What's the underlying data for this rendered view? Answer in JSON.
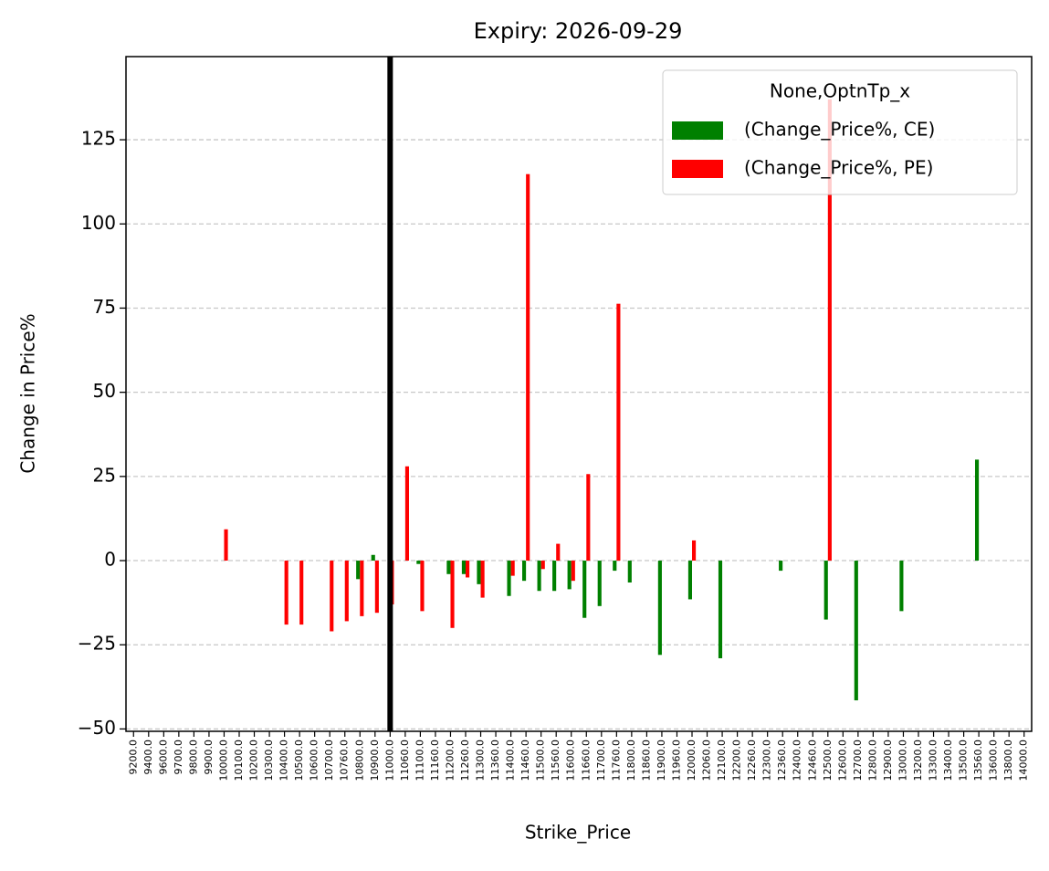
{
  "chart_data": {
    "type": "bar",
    "title": "Expiry: 2026-09-29",
    "x_label": "Strike_Price",
    "y_label": "Change in Price%",
    "categories": [
      "9200.0",
      "9400.0",
      "9600.0",
      "9700.0",
      "9800.0",
      "9900.0",
      "10000.0",
      "10100.0",
      "10200.0",
      "10300.0",
      "10400.0",
      "10500.0",
      "10600.0",
      "10700.0",
      "10760.0",
      "10800.0",
      "10900.0",
      "11000.0",
      "11060.0",
      "11100.0",
      "11160.0",
      "11200.0",
      "11260.0",
      "11300.0",
      "11360.0",
      "11400.0",
      "11460.0",
      "11500.0",
      "11560.0",
      "11600.0",
      "11660.0",
      "11700.0",
      "11760.0",
      "11800.0",
      "11860.0",
      "11900.0",
      "11960.0",
      "12000.0",
      "12060.0",
      "12100.0",
      "12200.0",
      "12260.0",
      "12300.0",
      "12360.0",
      "12400.0",
      "12460.0",
      "12500.0",
      "12600.0",
      "12700.0",
      "12800.0",
      "12900.0",
      "13000.0",
      "13200.0",
      "13300.0",
      "13400.0",
      "13500.0",
      "13560.0",
      "13600.0",
      "13800.0",
      "14000.0"
    ],
    "legend_title": "None,OptnTp_x",
    "legend_position": "upper right",
    "series": [
      {
        "name": "(Change_Price%, CE)",
        "color": "#008000",
        "values": [
          null,
          null,
          null,
          null,
          null,
          null,
          null,
          null,
          null,
          null,
          null,
          null,
          null,
          null,
          null,
          -5.5,
          1.7,
          null,
          null,
          -1,
          null,
          -4,
          -4,
          -7,
          null,
          -10.5,
          -6,
          -9,
          -9,
          -8.5,
          -17,
          -13.5,
          -3,
          -6.5,
          null,
          -28,
          null,
          -11.5,
          null,
          -29,
          null,
          null,
          null,
          -3,
          null,
          null,
          -17.5,
          null,
          -41.5,
          null,
          null,
          -15,
          null,
          null,
          null,
          null,
          30,
          null,
          null,
          null
        ]
      },
      {
        "name": "(Change_Price%, PE)",
        "color": "#ff0000",
        "values": [
          null,
          null,
          null,
          null,
          null,
          null,
          9.3,
          null,
          null,
          null,
          -19,
          -19,
          null,
          -21,
          -18,
          -16.5,
          -15.5,
          -13,
          28,
          -15,
          null,
          -20,
          -5,
          -11,
          null,
          -4.5,
          114.8,
          -2.5,
          5,
          -6,
          25.7,
          null,
          76.3,
          null,
          null,
          null,
          null,
          6,
          null,
          null,
          null,
          null,
          null,
          null,
          null,
          null,
          137,
          null,
          null,
          null,
          null,
          null,
          null,
          null,
          null,
          null,
          null,
          null,
          null,
          null
        ]
      }
    ],
    "vline_category": "11000.0",
    "ylim": [
      -50.7,
      149.7
    ],
    "yticks": [
      {
        "value": -50,
        "label": "−50"
      },
      {
        "value": -25,
        "label": "−25"
      },
      0,
      25,
      50,
      75,
      100,
      125
    ],
    "grid": true
  }
}
